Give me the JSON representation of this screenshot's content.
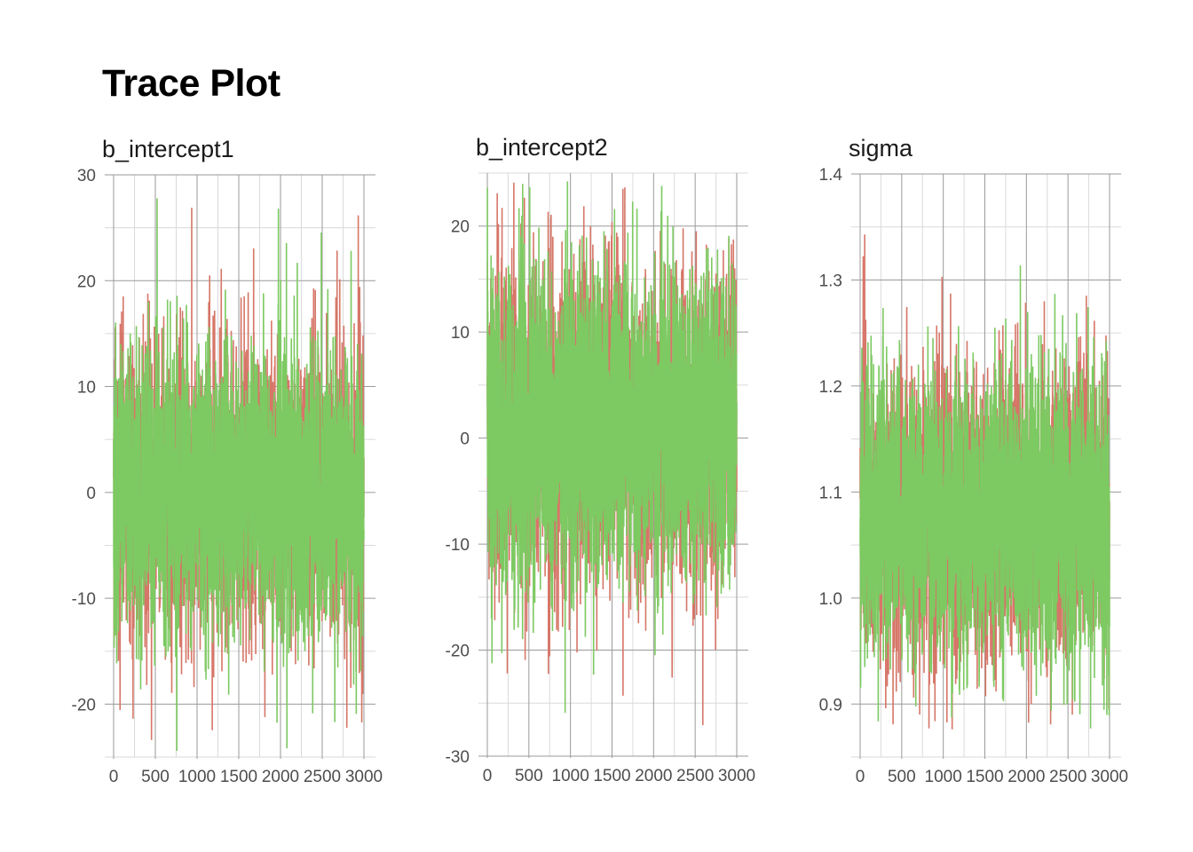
{
  "title": "Trace Plot",
  "colors": {
    "chain1": "#D67668",
    "chain2": "#7DC962",
    "grid_major": "#9a9a9a",
    "grid_minor": "#dadada",
    "axis_text": "#4d4d4d"
  },
  "chart_data": [
    {
      "type": "line",
      "title": "b_intercept1",
      "xlim": [
        0,
        3000
      ],
      "ylim": [
        -25,
        30
      ],
      "xticks": [
        0,
        500,
        1000,
        1500,
        2000,
        2500,
        3000
      ],
      "xtick_labels": [
        "0",
        "500",
        "1000",
        "1500",
        "2000",
        "2500",
        "3000"
      ],
      "yticks": [
        -20,
        -10,
        0,
        10,
        20,
        30
      ],
      "ytick_labels": [
        "-20",
        "-10",
        "0",
        "10",
        "20",
        "30"
      ],
      "trace_summary": {
        "center": 0,
        "sd": 6.5,
        "min": -24.5,
        "max": 28
      },
      "series": [
        {
          "color": "#D67668",
          "name": ""
        },
        {
          "color": "#7DC962",
          "name": ""
        }
      ],
      "grid": true
    },
    {
      "type": "line",
      "title": "b_intercept2",
      "xlim": [
        0,
        3000
      ],
      "ylim": [
        -30,
        25
      ],
      "xticks": [
        0,
        500,
        1000,
        1500,
        2000,
        2500,
        3000
      ],
      "xtick_labels": [
        "0",
        "500",
        "1000",
        "1500",
        "2000",
        "2500",
        "3000"
      ],
      "yticks": [
        -30,
        -20,
        -10,
        0,
        10,
        20
      ],
      "ytick_labels": [
        "-30",
        "-20",
        "-10",
        "0",
        "10",
        "20"
      ],
      "trace_summary": {
        "center": 1,
        "sd": 7,
        "min": -27.5,
        "max": 24.5
      },
      "series": [
        {
          "color": "#D67668",
          "name": ""
        },
        {
          "color": "#7DC962",
          "name": ""
        }
      ],
      "grid": true
    },
    {
      "type": "line",
      "title": "sigma",
      "xlim": [
        0,
        3000
      ],
      "ylim": [
        0.85,
        1.4
      ],
      "xticks": [
        0,
        500,
        1000,
        1500,
        2000,
        2500,
        3000
      ],
      "xtick_labels": [
        "0",
        "500",
        "1000",
        "1500",
        "2000",
        "2500",
        "3000"
      ],
      "yticks": [
        0.9,
        1.0,
        1.1,
        1.2,
        1.3,
        1.4
      ],
      "ytick_labels": [
        "0.9",
        "1.0",
        "1.1",
        "1.2",
        "1.3",
        "1.4"
      ],
      "trace_summary": {
        "center": 1.08,
        "sd": 0.065,
        "min": 0.875,
        "max": 1.375
      },
      "series": [
        {
          "color": "#D67668",
          "name": ""
        },
        {
          "color": "#7DC962",
          "name": ""
        }
      ],
      "grid": true
    }
  ]
}
